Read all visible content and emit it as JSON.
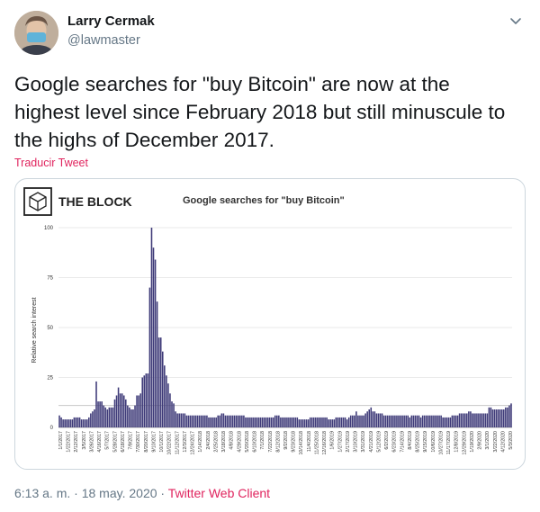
{
  "tweet": {
    "author_name": "Larry Cermak",
    "author_handle": "@lawmaster",
    "text_lines": [
      "Google searches for \"buy Bitcoin\" are now at the",
      "highest level since February 2018 but still minuscule to",
      "the highs of December 2017."
    ],
    "translate_label": "Traducir Tweet",
    "time": "6:13 a. m.",
    "separator": "·",
    "date": "18 may. 2020",
    "client": "Twitter Web Client"
  },
  "icons": {
    "menu": "chevron-down-icon",
    "logo": "the-block-cube-logo"
  },
  "colors": {
    "bar": "#3e3a78",
    "accent": "#e0245e",
    "muted": "#657786",
    "grid": "#e3e3e3"
  },
  "chart_data": {
    "type": "bar",
    "brand": "THE BLOCK",
    "title": "Google searches for \"buy Bitcoin\"",
    "xlabel": "",
    "ylabel": "Relative search interest",
    "ylim": [
      0,
      100
    ],
    "yticks": [
      0,
      25,
      50,
      75,
      100
    ],
    "reference_line": 11,
    "x_tick_labels": [
      "1/1/2017",
      "1/22/2017",
      "2/12/2017",
      "3/5/2017",
      "3/26/2017",
      "4/16/2017",
      "5/7/2017",
      "5/28/2017",
      "6/18/2017",
      "7/9/2017",
      "7/30/2017",
      "8/20/2017",
      "9/10/2017",
      "10/1/2017",
      "10/22/2017",
      "11/12/2017",
      "12/3/2017",
      "12/24/2017",
      "1/14/2018",
      "2/4/2018",
      "2/25/2018",
      "3/18/2018",
      "4/8/2018",
      "4/29/2018",
      "5/20/2018",
      "6/10/2018",
      "7/1/2018",
      "7/22/2018",
      "8/12/2018",
      "9/2/2018",
      "9/23/2018",
      "10/14/2018",
      "11/4/2018",
      "11/25/2018",
      "12/16/2018",
      "1/6/2019",
      "1/27/2019",
      "2/17/2019",
      "3/10/2019",
      "3/31/2019",
      "4/21/2019",
      "5/12/2019",
      "6/2/2019",
      "6/23/2019",
      "7/14/2019",
      "8/4/2019",
      "8/25/2019",
      "9/15/2019",
      "10/6/2019",
      "10/27/2019",
      "11/17/2019",
      "12/8/2019",
      "12/29/2019",
      "1/19/2020",
      "2/9/2020",
      "3/1/2020",
      "3/22/2020",
      "4/12/2020",
      "5/3/2020"
    ],
    "values": [
      6,
      5,
      4,
      4,
      4,
      4,
      4,
      4,
      5,
      5,
      5,
      5,
      4,
      4,
      4,
      4,
      5,
      7,
      8,
      9,
      23,
      13,
      13,
      13,
      11,
      10,
      9,
      10,
      10,
      10,
      14,
      16,
      20,
      17,
      17,
      16,
      14,
      11,
      10,
      9,
      9,
      11,
      16,
      16,
      17,
      25,
      26,
      27,
      27,
      70,
      100,
      90,
      84,
      63,
      45,
      45,
      38,
      31,
      26,
      22,
      17,
      13,
      12,
      8,
      7,
      7,
      7,
      7,
      7,
      6,
      6,
      6,
      6,
      6,
      6,
      6,
      6,
      6,
      6,
      6,
      6,
      5,
      5,
      5,
      5,
      5,
      6,
      6,
      7,
      7,
      6,
      6,
      6,
      6,
      6,
      6,
      6,
      6,
      6,
      6,
      6,
      5,
      5,
      5,
      5,
      5,
      5,
      5,
      5,
      5,
      5,
      5,
      5,
      5,
      5,
      5,
      5,
      6,
      6,
      6,
      5,
      5,
      5,
      5,
      5,
      5,
      5,
      5,
      5,
      5,
      4,
      4,
      4,
      4,
      4,
      4,
      5,
      5,
      5,
      5,
      5,
      5,
      5,
      5,
      5,
      5,
      4,
      4,
      4,
      4,
      5,
      5,
      5,
      5,
      5,
      5,
      4,
      5,
      6,
      6,
      6,
      8,
      6,
      6,
      6,
      6,
      7,
      8,
      9,
      10,
      8,
      8,
      7,
      7,
      7,
      7,
      6,
      6,
      6,
      6,
      6,
      6,
      6,
      6,
      6,
      6,
      6,
      6,
      6,
      6,
      5,
      6,
      6,
      6,
      6,
      6,
      5,
      6,
      6,
      6,
      6,
      6,
      6,
      6,
      6,
      6,
      6,
      6,
      5,
      5,
      5,
      5,
      5,
      6,
      6,
      6,
      6,
      7,
      7,
      7,
      7,
      7,
      8,
      8,
      7,
      7,
      7,
      7,
      7,
      7,
      7,
      7,
      7,
      10,
      10,
      9,
      9,
      9,
      9,
      9,
      9,
      9,
      10,
      10,
      11,
      12
    ]
  }
}
